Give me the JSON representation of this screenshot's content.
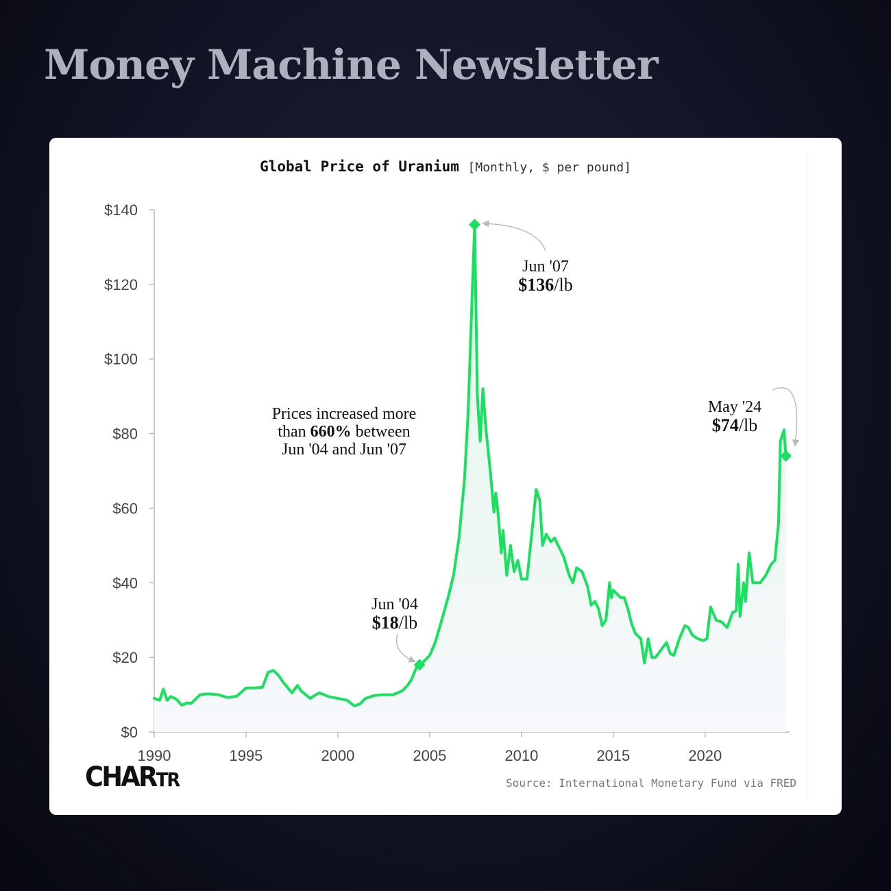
{
  "header": {
    "title": "Money Machine Newsletter"
  },
  "chart_data": {
    "type": "area",
    "title": "Global Price of Uranium",
    "subtitle": "[Monthly, $ per pound]",
    "source": "Source: International Monetary Fund via FRED",
    "logo": {
      "main": "CHAR",
      "small": "TR"
    },
    "xlim": [
      1990,
      2024.6
    ],
    "ylim": [
      0,
      140
    ],
    "x_ticks": [
      1990,
      1995,
      2000,
      2005,
      2010,
      2015,
      2020
    ],
    "y_ticks": [
      0,
      20,
      40,
      60,
      80,
      100,
      120,
      140
    ],
    "y_tick_labels": [
      "$0",
      "$20",
      "$40",
      "$60",
      "$80",
      "$100",
      "$120",
      "$140"
    ],
    "grid": false,
    "colors": {
      "line": "#19e05f",
      "fill_top": "#e3f8ea",
      "fill_bottom": "#f6f8fc",
      "axis": "#bbbbbb",
      "annotation_arrow": "#bbbbbb"
    },
    "series": [
      {
        "x": [
          1990,
          1990.3,
          1990.5,
          1990.7,
          1990.9,
          1991.2,
          1991.5,
          1991.8,
          1992,
          1992.5,
          1992.8,
          1993,
          1993.5,
          1994,
          1994.5,
          1995,
          1995.5,
          1995.9,
          1996.2,
          1996.5,
          1996.8,
          1997,
          1997.5,
          1997.8,
          1998,
          1998.5,
          1998.8,
          1999,
          1999.5,
          2000,
          2000.5,
          2000.9,
          2001.2,
          2001.5,
          2002,
          2002.5,
          2003,
          2003.5,
          2003.8,
          2004,
          2004.3,
          2004.5,
          2004.8,
          2005,
          2005.3,
          2005.6,
          2006,
          2006.3,
          2006.6,
          2006.9,
          2007.1,
          2007.3,
          2007.45,
          2007.6,
          2007.75,
          2007.9,
          2008.05,
          2008.3,
          2008.5,
          2008.6,
          2008.7,
          2008.9,
          2009,
          2009.2,
          2009.4,
          2009.6,
          2009.8,
          2010,
          2010.3,
          2010.6,
          2010.8,
          2011,
          2011.15,
          2011.35,
          2011.6,
          2011.8,
          2012,
          2012.3,
          2012.6,
          2012.8,
          2013,
          2013.3,
          2013.6,
          2013.8,
          2014,
          2014.2,
          2014.4,
          2014.6,
          2014.8,
          2014.9,
          2015,
          2015.2,
          2015.4,
          2015.6,
          2015.8,
          2016,
          2016.2,
          2016.5,
          2016.7,
          2016.9,
          2017.1,
          2017.3,
          2017.6,
          2017.9,
          2018.1,
          2018.3,
          2018.6,
          2018.9,
          2019.1,
          2019.3,
          2019.6,
          2019.9,
          2020.1,
          2020.3,
          2020.6,
          2020.9,
          2021.2,
          2021.5,
          2021.7,
          2021.8,
          2021.9,
          2022.1,
          2022.2,
          2022.4,
          2022.6,
          2022.8,
          2023,
          2023.3,
          2023.6,
          2023.8,
          2024,
          2024.1,
          2024.3,
          2024.4
        ],
        "y": [
          9,
          8.5,
          11.5,
          8.5,
          9.5,
          8.8,
          7.2,
          7.8,
          7.6,
          10,
          10.2,
          10.2,
          10,
          9.2,
          9.6,
          11.8,
          11.8,
          12,
          16,
          16.5,
          15,
          13.5,
          10.5,
          12.5,
          11,
          9,
          10,
          10.5,
          9.5,
          9,
          8.5,
          7,
          7.5,
          9,
          9.8,
          10,
          10,
          11,
          12.5,
          14,
          17.5,
          18,
          19.5,
          20.5,
          24,
          29,
          36,
          42,
          52,
          68,
          86,
          115,
          136,
          90,
          78,
          92,
          82,
          70,
          59,
          64,
          60,
          48,
          54,
          42,
          50,
          43,
          46,
          41,
          41,
          55,
          65,
          62,
          50,
          53,
          51,
          52,
          50,
          47,
          42,
          40,
          44,
          43,
          39,
          34,
          35,
          33,
          28.5,
          30,
          40,
          36,
          38,
          37,
          36,
          36,
          33,
          29,
          26.5,
          25,
          18.5,
          25,
          20,
          20,
          22,
          24,
          21,
          20.5,
          25,
          28.5,
          28,
          26,
          25,
          24.5,
          25,
          33.5,
          30,
          29.5,
          28,
          32,
          32.5,
          45,
          31,
          40,
          35,
          48,
          40,
          40,
          40,
          42,
          45,
          46,
          56,
          78,
          81,
          74
        ]
      }
    ],
    "annotations": [
      {
        "x": 2007.45,
        "y": 136,
        "line1": "Jun '07",
        "value": "$136",
        "unit": "/lb"
      },
      {
        "x": 2004.45,
        "y": 18,
        "line1": "Jun '04",
        "value": "$18",
        "unit": "/lb"
      },
      {
        "x": 2024.4,
        "y": 74,
        "line1": "May '24",
        "value": "$74",
        "unit": "/lb"
      }
    ],
    "note": {
      "line1": "Prices increased more",
      "line2_pre": "than ",
      "line2_bold": "660%",
      "line2_post": " between",
      "line3": "Jun '04 and Jun '07"
    }
  }
}
